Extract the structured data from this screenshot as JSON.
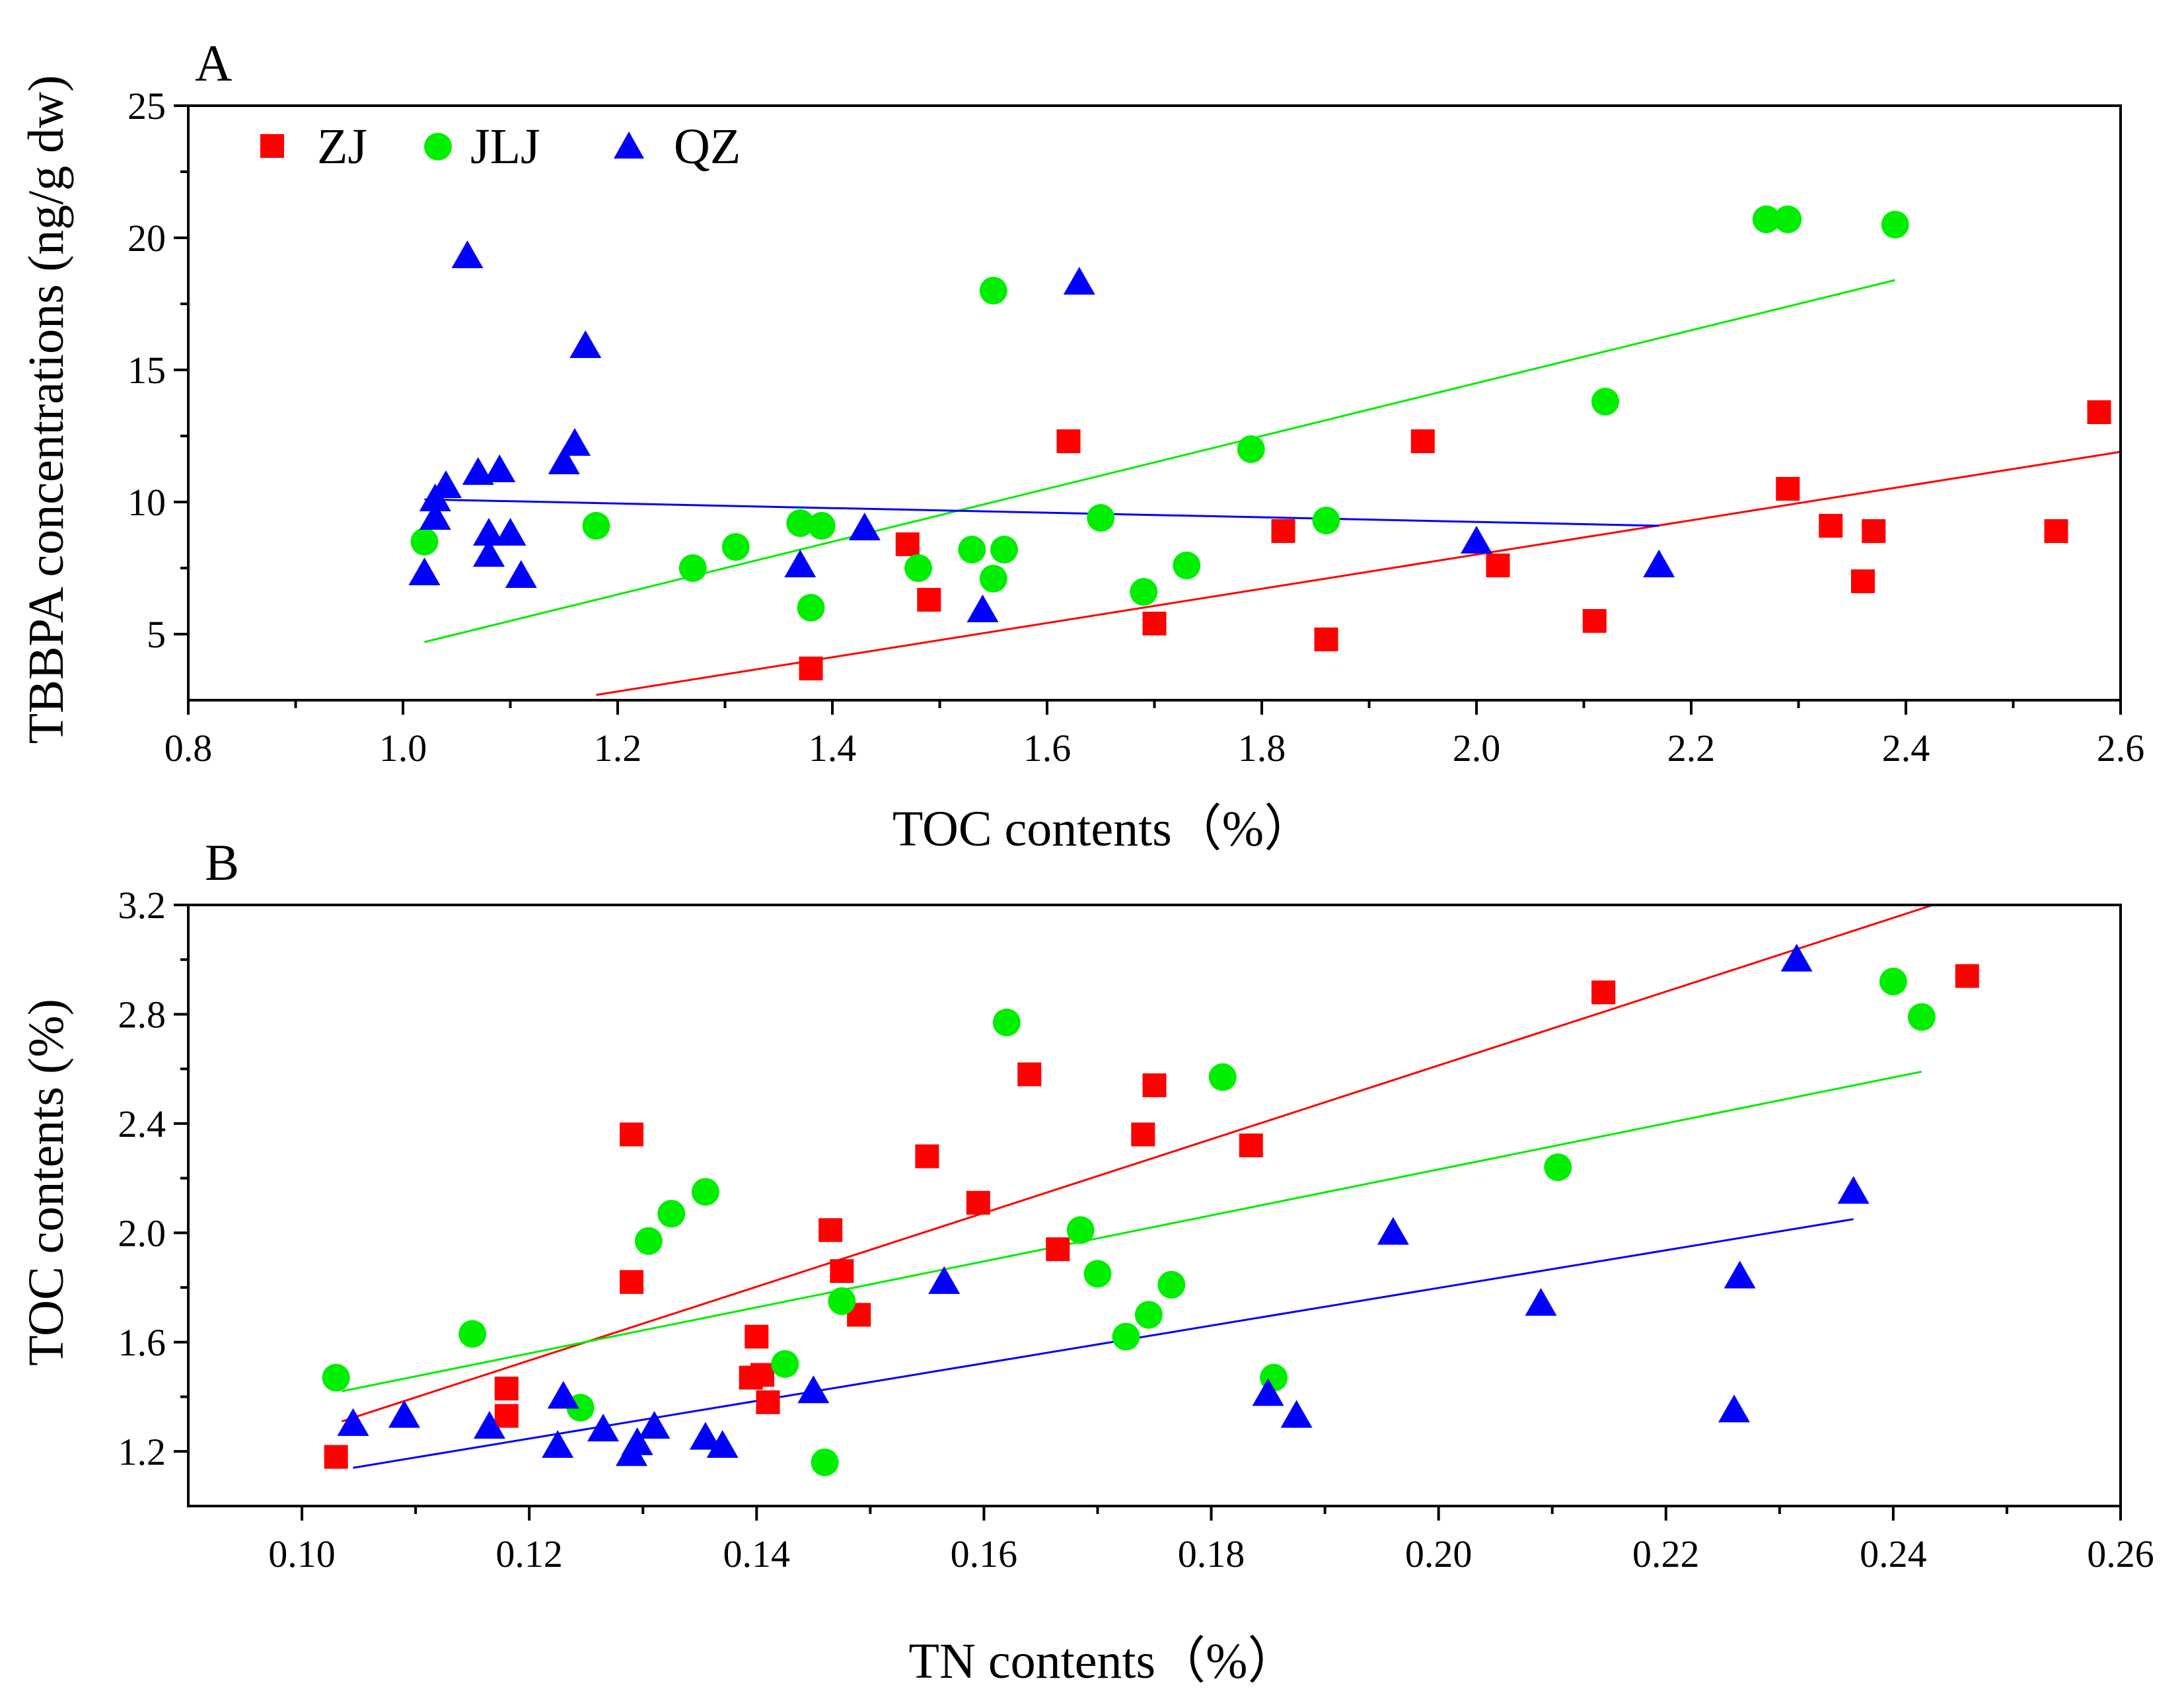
{
  "chart_data": [
    {
      "panel": "A",
      "type": "scatter",
      "title": "A",
      "xlabel": "TOC contents（%）",
      "ylabel": "TBBPA concentrations (ng/g dw)",
      "xlim": [
        0.8,
        2.6
      ],
      "ylim": [
        2.5,
        25
      ],
      "xticks": [
        "0.8",
        "1.0",
        "1.2",
        "1.4",
        "1.6",
        "1.8",
        "2.0",
        "2.2",
        "2.4",
        "2.6"
      ],
      "yticks": [
        "5",
        "10",
        "15",
        "20",
        "25"
      ],
      "legend_position": "top-left",
      "series": [
        {
          "name": "ZJ",
          "color": "#ff0000",
          "marker": "square",
          "points": [
            [
              1.38,
              3.7
            ],
            [
              1.47,
              8.4
            ],
            [
              1.49,
              6.3
            ],
            [
              1.62,
              12.3
            ],
            [
              1.7,
              5.4
            ],
            [
              1.82,
              8.9
            ],
            [
              1.86,
              4.8
            ],
            [
              1.95,
              12.3
            ],
            [
              2.02,
              7.6
            ],
            [
              2.11,
              5.5
            ],
            [
              2.29,
              10.5
            ],
            [
              2.33,
              9.1
            ],
            [
              2.36,
              7.0
            ],
            [
              2.37,
              8.9
            ],
            [
              2.54,
              8.9
            ],
            [
              2.58,
              13.4
            ]
          ],
          "trend": [
            [
              1.18,
              2.7
            ],
            [
              2.6,
              11.9
            ]
          ]
        },
        {
          "name": "JLJ",
          "color": "#00ee00",
          "marker": "circle",
          "points": [
            [
              1.02,
              8.5
            ],
            [
              1.18,
              9.1
            ],
            [
              1.27,
              7.5
            ],
            [
              1.31,
              8.3
            ],
            [
              1.37,
              9.2
            ],
            [
              1.39,
              9.1
            ],
            [
              1.38,
              6.0
            ],
            [
              1.48,
              7.5
            ],
            [
              1.53,
              8.2
            ],
            [
              1.55,
              7.1
            ],
            [
              1.56,
              8.2
            ],
            [
              1.55,
              18.0
            ],
            [
              1.65,
              9.4
            ],
            [
              1.69,
              6.6
            ],
            [
              1.73,
              7.6
            ],
            [
              1.79,
              12.0
            ],
            [
              1.86,
              9.3
            ],
            [
              2.12,
              13.8
            ],
            [
              2.27,
              20.7
            ],
            [
              2.29,
              20.7
            ],
            [
              2.39,
              20.5
            ]
          ],
          "trend": [
            [
              1.02,
              4.7
            ],
            [
              2.39,
              18.4
            ]
          ]
        },
        {
          "name": "QZ",
          "color": "#0000ff",
          "marker": "triangle",
          "points": [
            [
              1.02,
              7.3
            ],
            [
              1.03,
              9.4
            ],
            [
              1.03,
              10.1
            ],
            [
              1.04,
              10.6
            ],
            [
              1.06,
              19.3
            ],
            [
              1.07,
              11.1
            ],
            [
              1.08,
              8.8
            ],
            [
              1.08,
              8.0
            ],
            [
              1.09,
              11.2
            ],
            [
              1.1,
              8.8
            ],
            [
              1.11,
              7.2
            ],
            [
              1.15,
              11.5
            ],
            [
              1.16,
              12.2
            ],
            [
              1.17,
              15.9
            ],
            [
              1.37,
              7.6
            ],
            [
              1.43,
              9.0
            ],
            [
              1.54,
              5.9
            ],
            [
              1.63,
              18.3
            ],
            [
              2.0,
              8.5
            ],
            [
              2.17,
              7.6
            ]
          ],
          "trend": [
            [
              1.02,
              10.1
            ],
            [
              2.17,
              9.1
            ]
          ]
        }
      ]
    },
    {
      "panel": "B",
      "type": "scatter",
      "title": "B",
      "xlabel": "TN contents（%）",
      "ylabel": "TOC contents (%)",
      "xlim": [
        0.09,
        0.26
      ],
      "ylim": [
        1.0,
        3.2
      ],
      "xticks": [
        "0.10",
        "0.12",
        "0.14",
        "0.16",
        "0.18",
        "0.20",
        "0.22",
        "0.24",
        "0.26"
      ],
      "yticks": [
        "1.2",
        "1.6",
        "2.0",
        "2.4",
        "2.8",
        "3.2"
      ],
      "series": [
        {
          "name": "ZJ",
          "color": "#ff0000",
          "marker": "square",
          "points": [
            [
              0.103,
              1.18
            ],
            [
              0.118,
              1.33
            ],
            [
              0.118,
              1.43
            ],
            [
              0.129,
              2.36
            ],
            [
              0.129,
              1.82
            ],
            [
              0.1395,
              1.47
            ],
            [
              0.14,
              1.62
            ],
            [
              0.1405,
              1.48
            ],
            [
              0.141,
              1.38
            ],
            [
              0.1465,
              2.01
            ],
            [
              0.1475,
              1.86
            ],
            [
              0.149,
              1.7
            ],
            [
              0.155,
              2.28
            ],
            [
              0.1595,
              2.11
            ],
            [
              0.164,
              2.58
            ],
            [
              0.1665,
              1.94
            ],
            [
              0.174,
              2.36
            ],
            [
              0.175,
              2.54
            ],
            [
              0.1835,
              2.32
            ],
            [
              0.2145,
              2.88
            ],
            [
              0.2465,
              2.94
            ]
          ],
          "trend": [
            [
              0.1035,
              1.31
            ],
            [
              0.2435,
              3.2
            ]
          ]
        },
        {
          "name": "JLJ",
          "color": "#00ee00",
          "marker": "circle",
          "points": [
            [
              0.103,
              1.47
            ],
            [
              0.115,
              1.63
            ],
            [
              0.1245,
              1.36
            ],
            [
              0.1305,
              1.97
            ],
            [
              0.1325,
              2.07
            ],
            [
              0.1355,
              2.15
            ],
            [
              0.1425,
              1.52
            ],
            [
              0.146,
              1.16
            ],
            [
              0.1475,
              1.75
            ],
            [
              0.162,
              2.77
            ],
            [
              0.1685,
              2.01
            ],
            [
              0.17,
              1.85
            ],
            [
              0.1725,
              1.62
            ],
            [
              0.1745,
              1.7
            ],
            [
              0.1765,
              1.81
            ],
            [
              0.181,
              2.57
            ],
            [
              0.1855,
              1.47
            ],
            [
              0.2105,
              2.24
            ],
            [
              0.24,
              2.92
            ],
            [
              0.2425,
              2.79
            ]
          ],
          "trend": [
            [
              0.1035,
              1.42
            ],
            [
              0.2425,
              2.59
            ]
          ]
        },
        {
          "name": "QZ",
          "color": "#0000ff",
          "marker": "triangle",
          "points": [
            [
              0.1045,
              1.3
            ],
            [
              0.109,
              1.33
            ],
            [
              0.1165,
              1.29
            ],
            [
              0.1225,
              1.22
            ],
            [
              0.123,
              1.4
            ],
            [
              0.1265,
              1.28
            ],
            [
              0.129,
              1.19
            ],
            [
              0.1295,
              1.23
            ],
            [
              0.131,
              1.29
            ],
            [
              0.1355,
              1.25
            ],
            [
              0.137,
              1.22
            ],
            [
              0.145,
              1.42
            ],
            [
              0.1565,
              1.82
            ],
            [
              0.185,
              1.41
            ],
            [
              0.1875,
              1.33
            ],
            [
              0.196,
              2.0
            ],
            [
              0.209,
              1.74
            ],
            [
              0.226,
              1.35
            ],
            [
              0.2265,
              1.84
            ],
            [
              0.2315,
              3.0
            ],
            [
              0.2365,
              2.15
            ]
          ],
          "trend": [
            [
              0.1045,
              1.14
            ],
            [
              0.2365,
              2.05
            ]
          ]
        }
      ]
    }
  ]
}
